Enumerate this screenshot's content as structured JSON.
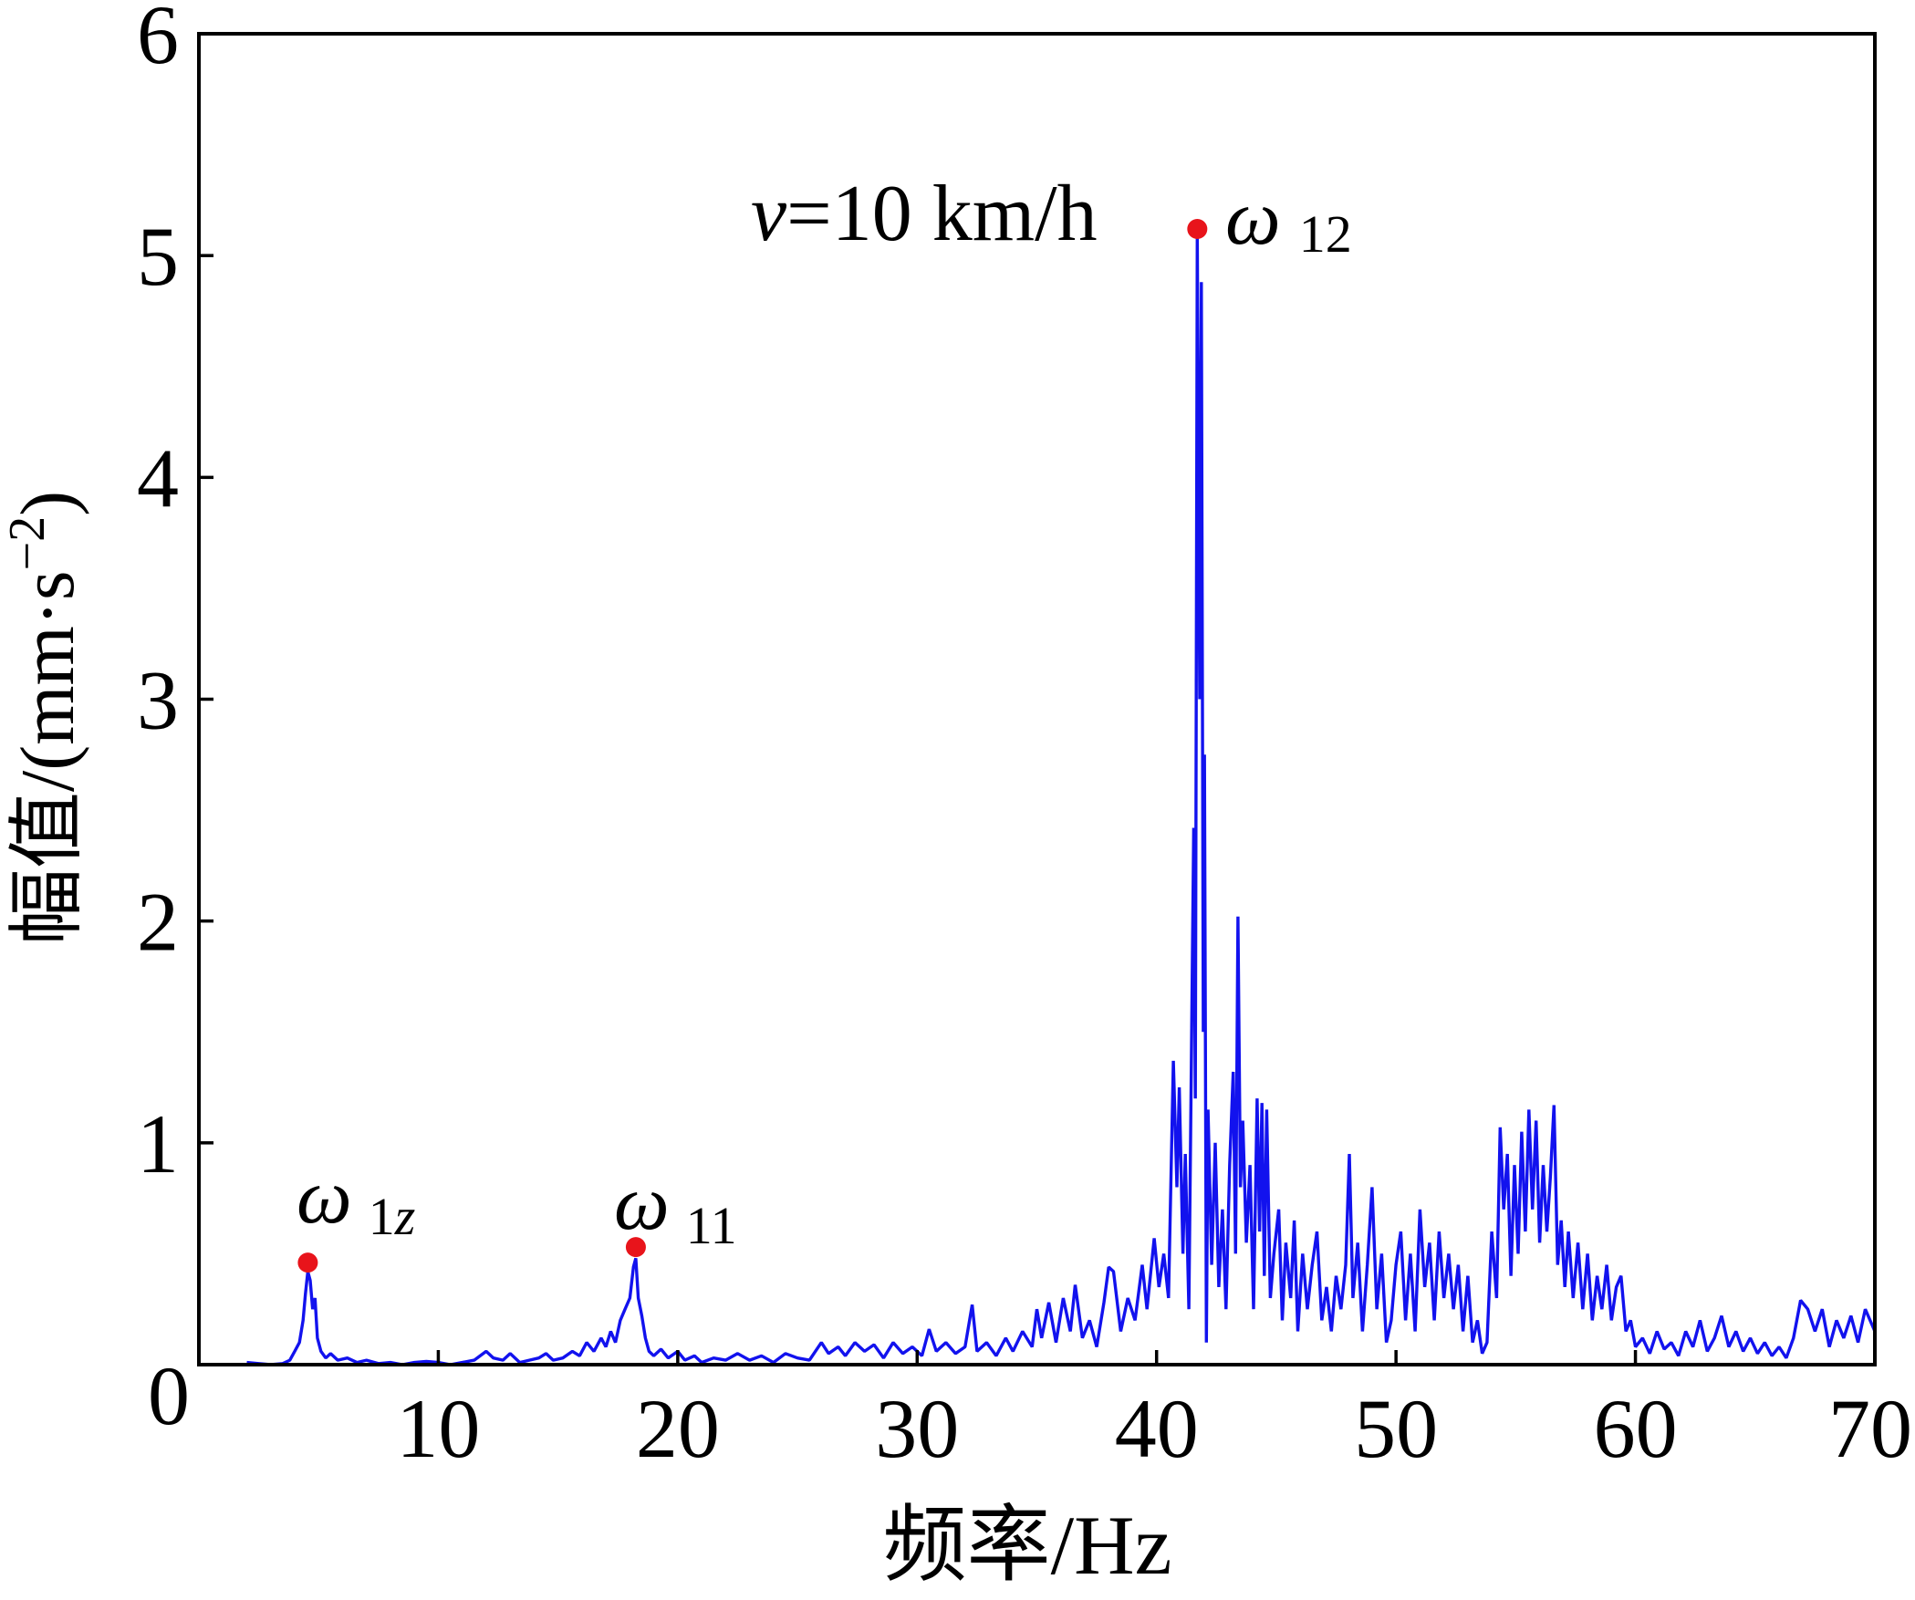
{
  "chart_data": {
    "type": "line",
    "title": "",
    "xlabel": "频率/Hz",
    "ylabel": {
      "text": "幅值/(mm·s",
      "superscript": "−2",
      "suffix": ")"
    },
    "xlim": [
      0,
      70
    ],
    "ylim": [
      0,
      6
    ],
    "xticks": [
      10,
      20,
      30,
      40,
      50,
      60,
      70
    ],
    "yticks": [
      0,
      1,
      2,
      3,
      4,
      5,
      6
    ],
    "grid": false,
    "annotation": {
      "variable": "v",
      "rest": "=10 km/h"
    },
    "markers": [
      {
        "x": 4.55,
        "y": 0.46,
        "symbol": "ω",
        "sub": "1",
        "sub_var": "z"
      },
      {
        "x": 18.25,
        "y": 0.53,
        "symbol": "ω",
        "sub": "11"
      },
      {
        "x": 41.7,
        "y": 5.12,
        "symbol": "ω",
        "sub": "12"
      }
    ],
    "series": [
      {
        "points": [
          [
            2.0,
            0.01
          ],
          [
            2.5,
            0.005
          ],
          [
            3.0,
            0.0
          ],
          [
            3.5,
            0.005
          ],
          [
            3.8,
            0.02
          ],
          [
            4.0,
            0.06
          ],
          [
            4.2,
            0.1
          ],
          [
            4.35,
            0.2
          ],
          [
            4.45,
            0.32
          ],
          [
            4.55,
            0.42
          ],
          [
            4.65,
            0.38
          ],
          [
            4.75,
            0.25
          ],
          [
            4.85,
            0.3
          ],
          [
            4.95,
            0.12
          ],
          [
            5.1,
            0.06
          ],
          [
            5.3,
            0.03
          ],
          [
            5.5,
            0.05
          ],
          [
            5.8,
            0.02
          ],
          [
            6.2,
            0.03
          ],
          [
            6.6,
            0.01
          ],
          [
            7.0,
            0.02
          ],
          [
            7.5,
            0.005
          ],
          [
            8.0,
            0.01
          ],
          [
            8.5,
            0.0
          ],
          [
            9.0,
            0.01
          ],
          [
            9.5,
            0.015
          ],
          [
            10.0,
            0.01
          ],
          [
            10.5,
            0.0
          ],
          [
            11.0,
            0.01
          ],
          [
            11.5,
            0.02
          ],
          [
            12.0,
            0.06
          ],
          [
            12.3,
            0.03
          ],
          [
            12.7,
            0.02
          ],
          [
            13.0,
            0.05
          ],
          [
            13.4,
            0.01
          ],
          [
            13.8,
            0.02
          ],
          [
            14.2,
            0.03
          ],
          [
            14.5,
            0.05
          ],
          [
            14.8,
            0.02
          ],
          [
            15.2,
            0.03
          ],
          [
            15.6,
            0.06
          ],
          [
            15.9,
            0.04
          ],
          [
            16.2,
            0.1
          ],
          [
            16.5,
            0.06
          ],
          [
            16.8,
            0.12
          ],
          [
            17.0,
            0.08
          ],
          [
            17.2,
            0.15
          ],
          [
            17.4,
            0.1
          ],
          [
            17.6,
            0.2
          ],
          [
            17.8,
            0.25
          ],
          [
            18.0,
            0.3
          ],
          [
            18.15,
            0.44
          ],
          [
            18.25,
            0.48
          ],
          [
            18.35,
            0.3
          ],
          [
            18.5,
            0.22
          ],
          [
            18.65,
            0.12
          ],
          [
            18.8,
            0.06
          ],
          [
            19.0,
            0.04
          ],
          [
            19.3,
            0.07
          ],
          [
            19.6,
            0.03
          ],
          [
            20.0,
            0.06
          ],
          [
            20.3,
            0.02
          ],
          [
            20.7,
            0.04
          ],
          [
            21.0,
            0.01
          ],
          [
            21.5,
            0.03
          ],
          [
            22.0,
            0.02
          ],
          [
            22.5,
            0.05
          ],
          [
            23.0,
            0.02
          ],
          [
            23.5,
            0.04
          ],
          [
            24.0,
            0.01
          ],
          [
            24.5,
            0.05
          ],
          [
            25.0,
            0.03
          ],
          [
            25.5,
            0.02
          ],
          [
            26.0,
            0.1
          ],
          [
            26.3,
            0.05
          ],
          [
            26.7,
            0.08
          ],
          [
            27.0,
            0.04
          ],
          [
            27.4,
            0.1
          ],
          [
            27.8,
            0.06
          ],
          [
            28.2,
            0.09
          ],
          [
            28.6,
            0.03
          ],
          [
            29.0,
            0.1
          ],
          [
            29.4,
            0.05
          ],
          [
            29.8,
            0.08
          ],
          [
            30.2,
            0.04
          ],
          [
            30.5,
            0.16
          ],
          [
            30.8,
            0.06
          ],
          [
            31.2,
            0.1
          ],
          [
            31.6,
            0.05
          ],
          [
            32.0,
            0.08
          ],
          [
            32.3,
            0.27
          ],
          [
            32.5,
            0.06
          ],
          [
            32.9,
            0.1
          ],
          [
            33.3,
            0.04
          ],
          [
            33.7,
            0.12
          ],
          [
            34.0,
            0.06
          ],
          [
            34.4,
            0.15
          ],
          [
            34.8,
            0.08
          ],
          [
            35.0,
            0.25
          ],
          [
            35.2,
            0.12
          ],
          [
            35.5,
            0.28
          ],
          [
            35.8,
            0.1
          ],
          [
            36.1,
            0.3
          ],
          [
            36.4,
            0.15
          ],
          [
            36.6,
            0.36
          ],
          [
            36.9,
            0.12
          ],
          [
            37.2,
            0.2
          ],
          [
            37.5,
            0.08
          ],
          [
            37.8,
            0.28
          ],
          [
            38.0,
            0.44
          ],
          [
            38.2,
            0.42
          ],
          [
            38.5,
            0.15
          ],
          [
            38.8,
            0.3
          ],
          [
            39.1,
            0.2
          ],
          [
            39.4,
            0.45
          ],
          [
            39.6,
            0.25
          ],
          [
            39.9,
            0.57
          ],
          [
            40.1,
            0.35
          ],
          [
            40.3,
            0.5
          ],
          [
            40.5,
            0.3
          ],
          [
            40.7,
            1.37
          ],
          [
            40.85,
            0.8
          ],
          [
            40.95,
            1.25
          ],
          [
            41.1,
            0.5
          ],
          [
            41.2,
            0.95
          ],
          [
            41.35,
            0.25
          ],
          [
            41.55,
            2.42
          ],
          [
            41.62,
            1.2
          ],
          [
            41.7,
            5.1
          ],
          [
            41.8,
            3.0
          ],
          [
            41.87,
            4.88
          ],
          [
            41.95,
            1.5
          ],
          [
            42.0,
            2.75
          ],
          [
            42.08,
            0.1
          ],
          [
            42.15,
            1.15
          ],
          [
            42.3,
            0.45
          ],
          [
            42.45,
            1.0
          ],
          [
            42.6,
            0.35
          ],
          [
            42.75,
            0.7
          ],
          [
            42.9,
            0.25
          ],
          [
            43.05,
            0.9
          ],
          [
            43.2,
            1.32
          ],
          [
            43.3,
            0.5
          ],
          [
            43.4,
            2.02
          ],
          [
            43.5,
            0.8
          ],
          [
            43.6,
            1.1
          ],
          [
            43.75,
            0.55
          ],
          [
            43.9,
            0.9
          ],
          [
            44.05,
            0.25
          ],
          [
            44.2,
            1.2
          ],
          [
            44.3,
            0.6
          ],
          [
            44.4,
            1.18
          ],
          [
            44.5,
            0.4
          ],
          [
            44.6,
            1.15
          ],
          [
            44.75,
            0.3
          ],
          [
            44.9,
            0.5
          ],
          [
            45.1,
            0.7
          ],
          [
            45.25,
            0.2
          ],
          [
            45.4,
            0.55
          ],
          [
            45.6,
            0.3
          ],
          [
            45.75,
            0.65
          ],
          [
            45.9,
            0.15
          ],
          [
            46.1,
            0.5
          ],
          [
            46.3,
            0.25
          ],
          [
            46.5,
            0.45
          ],
          [
            46.7,
            0.6
          ],
          [
            46.9,
            0.2
          ],
          [
            47.1,
            0.35
          ],
          [
            47.3,
            0.15
          ],
          [
            47.5,
            0.4
          ],
          [
            47.7,
            0.25
          ],
          [
            47.9,
            0.45
          ],
          [
            48.05,
            0.95
          ],
          [
            48.2,
            0.3
          ],
          [
            48.4,
            0.55
          ],
          [
            48.6,
            0.15
          ],
          [
            48.8,
            0.45
          ],
          [
            49.0,
            0.8
          ],
          [
            49.2,
            0.25
          ],
          [
            49.4,
            0.5
          ],
          [
            49.6,
            0.1
          ],
          [
            49.8,
            0.2
          ],
          [
            50.0,
            0.45
          ],
          [
            50.2,
            0.6
          ],
          [
            50.4,
            0.2
          ],
          [
            50.6,
            0.5
          ],
          [
            50.8,
            0.15
          ],
          [
            51.0,
            0.7
          ],
          [
            51.2,
            0.35
          ],
          [
            51.4,
            0.55
          ],
          [
            51.6,
            0.2
          ],
          [
            51.8,
            0.6
          ],
          [
            52.0,
            0.3
          ],
          [
            52.2,
            0.5
          ],
          [
            52.4,
            0.25
          ],
          [
            52.6,
            0.45
          ],
          [
            52.8,
            0.15
          ],
          [
            53.0,
            0.4
          ],
          [
            53.2,
            0.1
          ],
          [
            53.4,
            0.2
          ],
          [
            53.6,
            0.05
          ],
          [
            53.8,
            0.1
          ],
          [
            54.0,
            0.6
          ],
          [
            54.2,
            0.3
          ],
          [
            54.35,
            1.07
          ],
          [
            54.5,
            0.7
          ],
          [
            54.65,
            0.95
          ],
          [
            54.8,
            0.4
          ],
          [
            54.95,
            0.9
          ],
          [
            55.1,
            0.5
          ],
          [
            55.25,
            1.05
          ],
          [
            55.4,
            0.6
          ],
          [
            55.55,
            1.15
          ],
          [
            55.7,
            0.7
          ],
          [
            55.85,
            1.1
          ],
          [
            56.0,
            0.55
          ],
          [
            56.15,
            0.9
          ],
          [
            56.3,
            0.6
          ],
          [
            56.45,
            0.85
          ],
          [
            56.6,
            1.17
          ],
          [
            56.75,
            0.45
          ],
          [
            56.9,
            0.65
          ],
          [
            57.05,
            0.35
          ],
          [
            57.2,
            0.6
          ],
          [
            57.4,
            0.3
          ],
          [
            57.6,
            0.55
          ],
          [
            57.8,
            0.25
          ],
          [
            58.0,
            0.5
          ],
          [
            58.2,
            0.2
          ],
          [
            58.4,
            0.4
          ],
          [
            58.6,
            0.25
          ],
          [
            58.8,
            0.45
          ],
          [
            59.0,
            0.2
          ],
          [
            59.2,
            0.35
          ],
          [
            59.4,
            0.4
          ],
          [
            59.6,
            0.15
          ],
          [
            59.8,
            0.2
          ],
          [
            60.0,
            0.08
          ],
          [
            60.3,
            0.12
          ],
          [
            60.6,
            0.05
          ],
          [
            60.9,
            0.15
          ],
          [
            61.2,
            0.07
          ],
          [
            61.5,
            0.1
          ],
          [
            61.8,
            0.04
          ],
          [
            62.1,
            0.15
          ],
          [
            62.4,
            0.08
          ],
          [
            62.7,
            0.2
          ],
          [
            63.0,
            0.06
          ],
          [
            63.3,
            0.12
          ],
          [
            63.6,
            0.22
          ],
          [
            63.9,
            0.08
          ],
          [
            64.2,
            0.15
          ],
          [
            64.5,
            0.06
          ],
          [
            64.8,
            0.12
          ],
          [
            65.1,
            0.05
          ],
          [
            65.4,
            0.1
          ],
          [
            65.7,
            0.04
          ],
          [
            66.0,
            0.08
          ],
          [
            66.3,
            0.03
          ],
          [
            66.6,
            0.12
          ],
          [
            66.9,
            0.29
          ],
          [
            67.2,
            0.25
          ],
          [
            67.5,
            0.15
          ],
          [
            67.8,
            0.25
          ],
          [
            68.1,
            0.08
          ],
          [
            68.4,
            0.2
          ],
          [
            68.7,
            0.12
          ],
          [
            69.0,
            0.22
          ],
          [
            69.3,
            0.1
          ],
          [
            69.6,
            0.25
          ],
          [
            70.0,
            0.15
          ]
        ]
      }
    ]
  },
  "colors": {
    "background": "#ffffff",
    "axis": "#000000",
    "line": "#1212ee",
    "marker": "#e8141b"
  }
}
